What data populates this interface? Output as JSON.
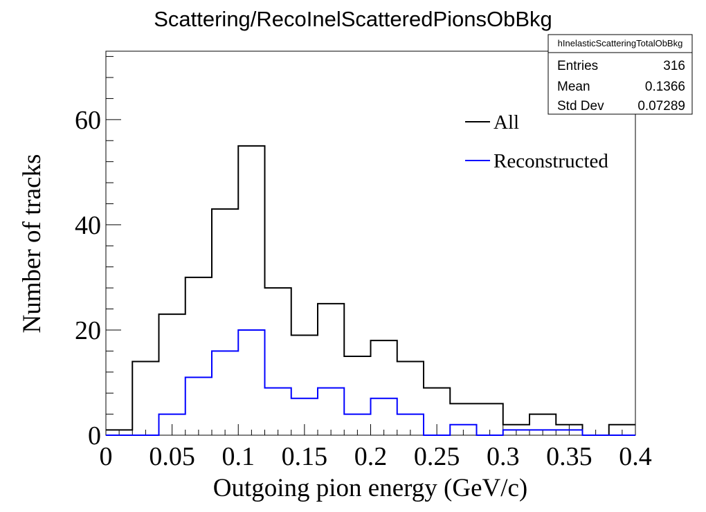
{
  "chart_data": {
    "type": "histogram",
    "title": "Scattering/RecoInelScatteredPionsObBkg",
    "xlabel": "Outgoing pion energy (GeV/c)",
    "ylabel": "Number of tracks",
    "xlim": [
      0,
      0.4
    ],
    "ylim": [
      0,
      73
    ],
    "grid": false,
    "x_ticks": [
      "0",
      "0.05",
      "0.1",
      "0.15",
      "0.2",
      "0.25",
      "0.3",
      "0.35",
      "0.4"
    ],
    "x_tick_values": [
      0,
      0.05,
      0.1,
      0.15,
      0.2,
      0.25,
      0.3,
      0.35,
      0.4
    ],
    "y_ticks": [
      "0",
      "20",
      "40",
      "60"
    ],
    "y_tick_values": [
      0,
      20,
      40,
      60
    ],
    "bin_edges": [
      0,
      0.02,
      0.04,
      0.06,
      0.08,
      0.1,
      0.12,
      0.14,
      0.16,
      0.18,
      0.2,
      0.22,
      0.24,
      0.26,
      0.28,
      0.3,
      0.32,
      0.34,
      0.36,
      0.38,
      0.4
    ],
    "series": [
      {
        "name": "All",
        "color": "#000000",
        "values": [
          1,
          14,
          23,
          30,
          43,
          55,
          28,
          19,
          25,
          15,
          18,
          14,
          9,
          6,
          6,
          2,
          4,
          2,
          0,
          2
        ]
      },
      {
        "name": "Reconstructed",
        "color": "#0000ff",
        "values": [
          0,
          0,
          4,
          11,
          16,
          20,
          9,
          7,
          9,
          4,
          7,
          4,
          0,
          2,
          0,
          1,
          1,
          1,
          0,
          0
        ]
      }
    ],
    "legend_position": "top-right",
    "stats_box": {
      "name": "hInelasticScatteringTotalObBkg",
      "rows": [
        {
          "label": "Entries",
          "value": "316"
        },
        {
          "label": "Mean",
          "value": "0.1366"
        },
        {
          "label": "Std Dev",
          "value": "0.07289"
        }
      ]
    }
  }
}
